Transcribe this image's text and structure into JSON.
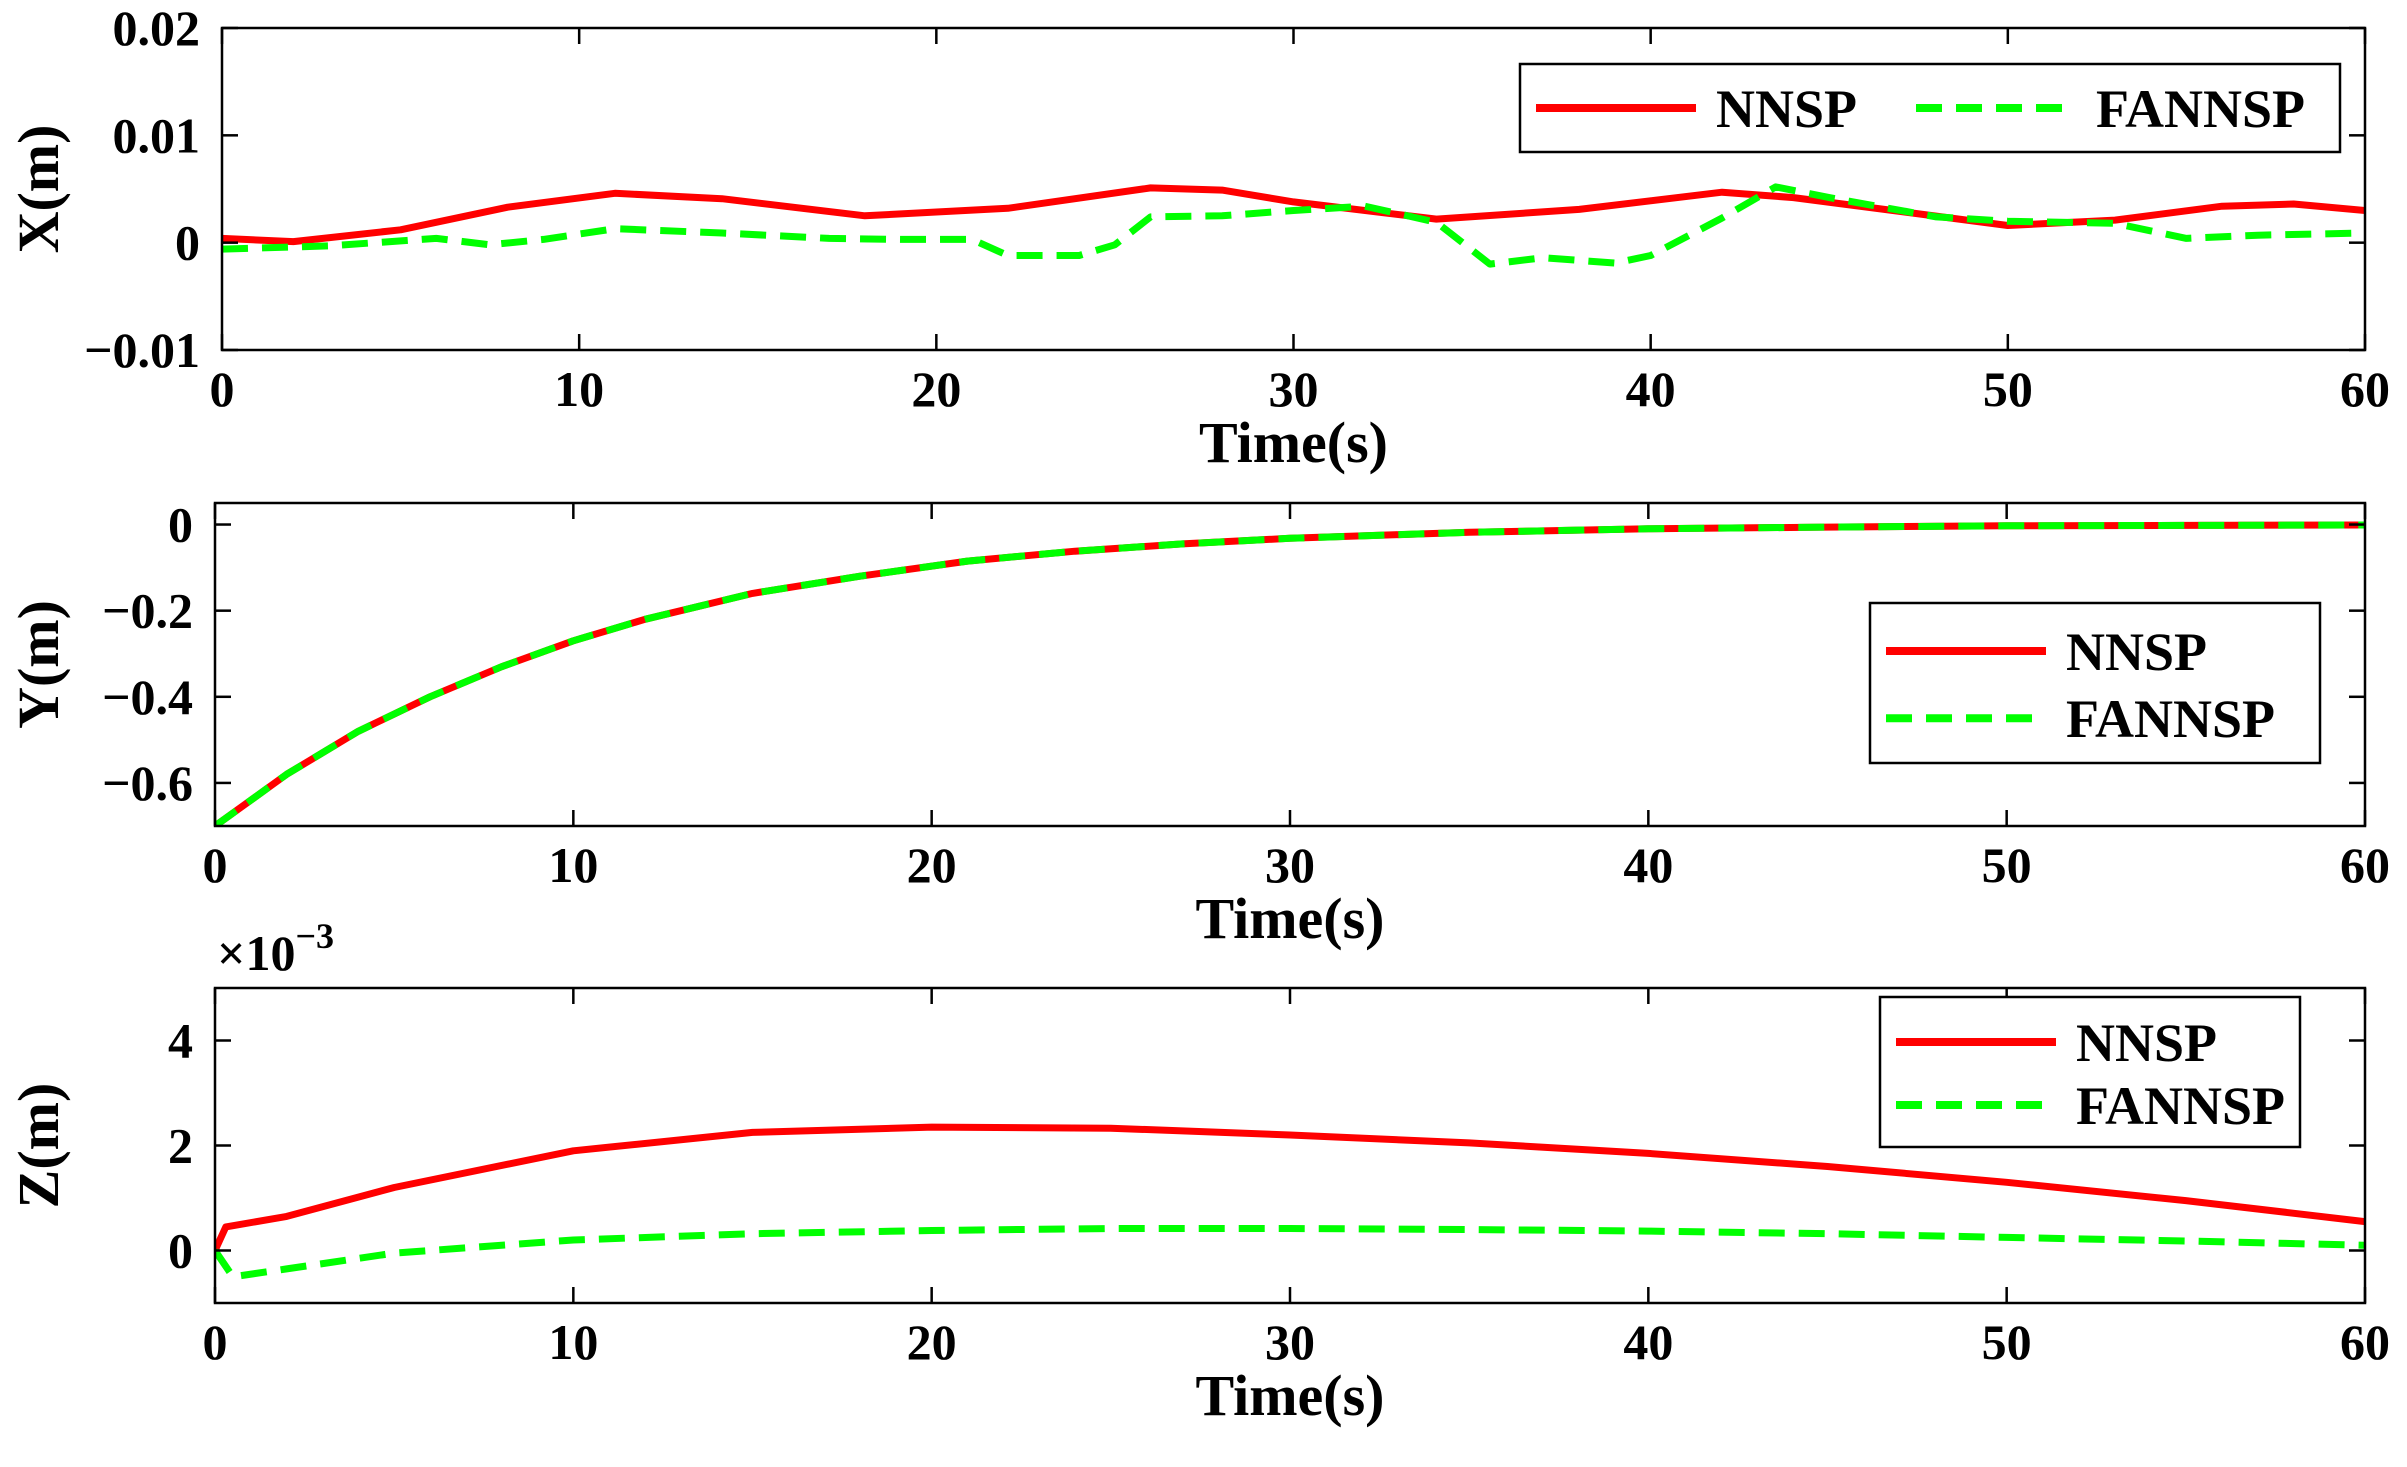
{
  "colors": {
    "nnsp": "#ff0000",
    "fannsp": "#00ff00",
    "axis": "#000000"
  },
  "chart_data": [
    {
      "type": "line",
      "ylabel": "X(m)",
      "xlabel": "Time(s)",
      "xlim": [
        0,
        60
      ],
      "ylim": [
        -0.01,
        0.02
      ],
      "xticks": [
        0,
        10,
        20,
        30,
        40,
        50,
        60
      ],
      "xtick_labels": [
        "0",
        "10",
        "20",
        "30",
        "40",
        "50",
        "60"
      ],
      "yticks": [
        -0.01,
        0,
        0.01,
        0.02
      ],
      "ytick_labels": [
        "−0.01",
        "0",
        "0.01",
        "0.02"
      ],
      "exponent_label": "",
      "legend": {
        "orientation": "horizontal",
        "placement": "top-right",
        "entries": [
          "NNSP",
          "FANNSP"
        ]
      },
      "series": [
        {
          "name": "NNSP",
          "style": "solid",
          "color": "#ff0000",
          "x": [
            0,
            2,
            5,
            8,
            11,
            14,
            18,
            22,
            26,
            28,
            30,
            34,
            38,
            42,
            44,
            47,
            50,
            53,
            56,
            58,
            60
          ],
          "y": [
            0.0004,
            0.0001,
            0.0012,
            0.0033,
            0.0046,
            0.0041,
            0.0025,
            0.0032,
            0.0051,
            0.0049,
            0.0038,
            0.0022,
            0.0031,
            0.0047,
            0.0042,
            0.0029,
            0.0016,
            0.0021,
            0.0034,
            0.0036,
            0.003
          ]
        },
        {
          "name": "FANNSP",
          "style": "dashed",
          "color": "#00ff00",
          "x": [
            0,
            3,
            6,
            7.5,
            9,
            11,
            14,
            17,
            19,
            21,
            22,
            24,
            25,
            26,
            28,
            30,
            32,
            34,
            35.5,
            37,
            39,
            40,
            42,
            43.5,
            45,
            48,
            50,
            53,
            55,
            57,
            60
          ],
          "y": [
            -0.0006,
            -0.0003,
            0.0004,
            -0.0002,
            0.0003,
            0.0013,
            0.0009,
            0.0004,
            0.0003,
            0.0003,
            -0.0012,
            -0.0012,
            -0.0002,
            0.0024,
            0.0025,
            0.003,
            0.0034,
            0.0019,
            -0.002,
            -0.0014,
            -0.0019,
            -0.0012,
            0.0023,
            0.0052,
            0.0042,
            0.0024,
            0.002,
            0.0018,
            0.0004,
            0.0007,
            0.0009
          ]
        }
      ]
    },
    {
      "type": "line",
      "ylabel": "Y(m)",
      "xlabel": "Time(s)",
      "xlim": [
        0,
        60
      ],
      "ylim": [
        -0.7,
        0.05
      ],
      "xticks": [
        0,
        10,
        20,
        30,
        40,
        50,
        60
      ],
      "xtick_labels": [
        "0",
        "10",
        "20",
        "30",
        "40",
        "50",
        "60"
      ],
      "yticks": [
        -0.6,
        -0.4,
        -0.2,
        0
      ],
      "ytick_labels": [
        "−0.6",
        "−0.4",
        "−0.2",
        "0"
      ],
      "exponent_label": "",
      "legend": {
        "orientation": "vertical",
        "placement": "right",
        "entries": [
          "NNSP",
          "FANNSP"
        ]
      },
      "series": [
        {
          "name": "NNSP",
          "style": "solid",
          "color": "#ff0000",
          "x": [
            0,
            2,
            4,
            6,
            8,
            10,
            12,
            15,
            18,
            21,
            24,
            27,
            30,
            35,
            40,
            45,
            50,
            55,
            60
          ],
          "y": [
            -0.7,
            -0.58,
            -0.48,
            -0.4,
            -0.33,
            -0.27,
            -0.22,
            -0.16,
            -0.12,
            -0.085,
            -0.062,
            -0.045,
            -0.032,
            -0.018,
            -0.01,
            -0.006,
            -0.003,
            -0.002,
            -0.001
          ]
        },
        {
          "name": "FANNSP",
          "style": "dashed",
          "color": "#00ff00",
          "x": [
            0,
            2,
            4,
            6,
            8,
            10,
            12,
            15,
            18,
            21,
            24,
            27,
            30,
            35,
            40,
            45,
            50,
            55,
            60
          ],
          "y": [
            -0.7,
            -0.58,
            -0.48,
            -0.4,
            -0.33,
            -0.27,
            -0.22,
            -0.16,
            -0.12,
            -0.085,
            -0.062,
            -0.045,
            -0.032,
            -0.018,
            -0.01,
            -0.006,
            -0.003,
            -0.002,
            -0.001
          ]
        }
      ]
    },
    {
      "type": "line",
      "ylabel": "Z(m)",
      "xlabel": "Time(s)",
      "xlim": [
        0,
        60
      ],
      "ylim": [
        -1,
        5
      ],
      "xticks": [
        0,
        10,
        20,
        30,
        40,
        50,
        60
      ],
      "xtick_labels": [
        "0",
        "10",
        "20",
        "30",
        "40",
        "50",
        "60"
      ],
      "yticks": [
        0,
        2,
        4
      ],
      "ytick_labels": [
        "0",
        "2",
        "4"
      ],
      "exponent_label": "×10",
      "exponent_power": "−3",
      "legend": {
        "orientation": "vertical",
        "placement": "top-right",
        "entries": [
          "NNSP",
          "FANNSP"
        ]
      },
      "series": [
        {
          "name": "NNSP",
          "style": "solid",
          "color": "#ff0000",
          "x": [
            0,
            0.3,
            2,
            5,
            10,
            15,
            20,
            25,
            30,
            35,
            40,
            45,
            50,
            55,
            60
          ],
          "y": [
            0,
            0.45,
            0.65,
            1.2,
            1.9,
            2.25,
            2.35,
            2.33,
            2.2,
            2.05,
            1.85,
            1.6,
            1.3,
            0.95,
            0.55
          ]
        },
        {
          "name": "FANNSP",
          "style": "dashed",
          "color": "#00ff00",
          "x": [
            0,
            0.5,
            2,
            5,
            10,
            15,
            20,
            25,
            30,
            35,
            40,
            45,
            50,
            55,
            60
          ],
          "y": [
            0,
            -0.5,
            -0.35,
            -0.05,
            0.2,
            0.32,
            0.38,
            0.42,
            0.42,
            0.4,
            0.37,
            0.32,
            0.25,
            0.18,
            0.1
          ]
        }
      ]
    }
  ]
}
